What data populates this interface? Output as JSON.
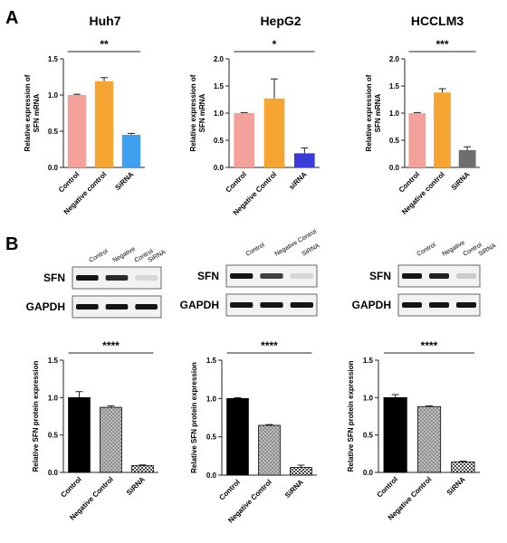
{
  "panel_letters": {
    "a": "A",
    "b": "B"
  },
  "chart_data": [
    {
      "type": "bar",
      "title": "Huh7",
      "ylabel": "Relative expression of\nSFN mRNA",
      "ylim": [
        0,
        1.5
      ],
      "ticks": [
        "0.0",
        "0.5",
        "1.0",
        "1.5"
      ],
      "categories": [
        "Control",
        "Negative control",
        "SiRNA"
      ],
      "values": [
        1.0,
        1.19,
        0.45
      ],
      "errors": [
        0.01,
        0.05,
        0.02
      ],
      "colors": [
        "#f4a09b",
        "#f7a532",
        "#3fa0f0"
      ],
      "pattern": "solid",
      "significance": "**"
    },
    {
      "type": "bar",
      "title": "HepG2",
      "ylabel": "Relative expression of\nSFN mRNA",
      "ylim": [
        0,
        2.0
      ],
      "ticks": [
        "0.0",
        "0.5",
        "1.0",
        "1.5",
        "2.0"
      ],
      "categories": [
        "Control",
        "Negative Control",
        "siRNA"
      ],
      "values": [
        1.0,
        1.27,
        0.26
      ],
      "errors": [
        0.01,
        0.36,
        0.1
      ],
      "colors": [
        "#f4a09b",
        "#f7a532",
        "#3b3bd9"
      ],
      "pattern": "solid",
      "significance": "*"
    },
    {
      "type": "bar",
      "title": "HCCLM3",
      "ylabel": "Relative expression of\nSFN mRNA",
      "ylim": [
        0,
        2.0
      ],
      "ticks": [
        "0.0",
        "0.5",
        "1.0",
        "1.5",
        "2.0"
      ],
      "categories": [
        "Control",
        "Negative control",
        "SiRNA"
      ],
      "values": [
        1.0,
        1.38,
        0.32
      ],
      "errors": [
        0.01,
        0.07,
        0.06
      ],
      "colors": [
        "#f4a09b",
        "#f7a532",
        "#6e6e6e"
      ],
      "pattern": "solid",
      "significance": "***"
    },
    {
      "type": "bar",
      "ylabel": "Relative SFN protein expression",
      "ylim": [
        0,
        1.5
      ],
      "ticks": [
        "0.0",
        "0.5",
        "1.0",
        "1.5"
      ],
      "categories": [
        "Control",
        "Negative Control",
        "SiRNA"
      ],
      "values": [
        1.0,
        0.87,
        0.09
      ],
      "errors": [
        0.08,
        0.02,
        0.01
      ],
      "colors": [
        "#000000",
        "#9a9a9a",
        "#ffffff"
      ],
      "pattern": "patterned",
      "significance": "****"
    },
    {
      "type": "bar",
      "ylabel": "Relative SFN protein expression",
      "ylim": [
        0,
        1.5
      ],
      "ticks": [
        "0.0",
        "0.5",
        "1.0",
        "1.5"
      ],
      "categories": [
        "Control",
        "Negative Control",
        "SiRNA"
      ],
      "values": [
        1.0,
        0.65,
        0.1
      ],
      "errors": [
        0.01,
        0.01,
        0.03
      ],
      "colors": [
        "#000000",
        "#9a9a9a",
        "#ffffff"
      ],
      "pattern": "patterned",
      "significance": "****"
    },
    {
      "type": "bar",
      "ylabel": "Relative SFN protein expression",
      "ylim": [
        0,
        1.5
      ],
      "ticks": [
        "0.0",
        "0.5",
        "1.0",
        "1.5"
      ],
      "categories": [
        "Control",
        "Negative Control",
        "SiRNA"
      ],
      "values": [
        1.0,
        0.88,
        0.14
      ],
      "errors": [
        0.04,
        0.01,
        0.01
      ],
      "colors": [
        "#000000",
        "#9a9a9a",
        "#ffffff"
      ],
      "pattern": "patterned",
      "significance": "****"
    }
  ],
  "blots": [
    {
      "lanes": [
        "Control",
        "Negative",
        "Control",
        "SiRNA"
      ],
      "rows": [
        "SFN",
        "GAPDH"
      ],
      "sfn_intensity": [
        1.0,
        0.9,
        0.1
      ]
    },
    {
      "lanes": [
        "Control",
        "Negative Control",
        "SiRNA"
      ],
      "rows": [
        "SFN",
        "GAPDH"
      ],
      "sfn_intensity": [
        1.0,
        0.8,
        0.1
      ]
    },
    {
      "lanes": [
        "Control",
        "Negative",
        "Control",
        "SiRNA"
      ],
      "rows": [
        "SFN",
        "GAPDH"
      ],
      "sfn_intensity": [
        1.0,
        0.95,
        0.15
      ]
    }
  ]
}
